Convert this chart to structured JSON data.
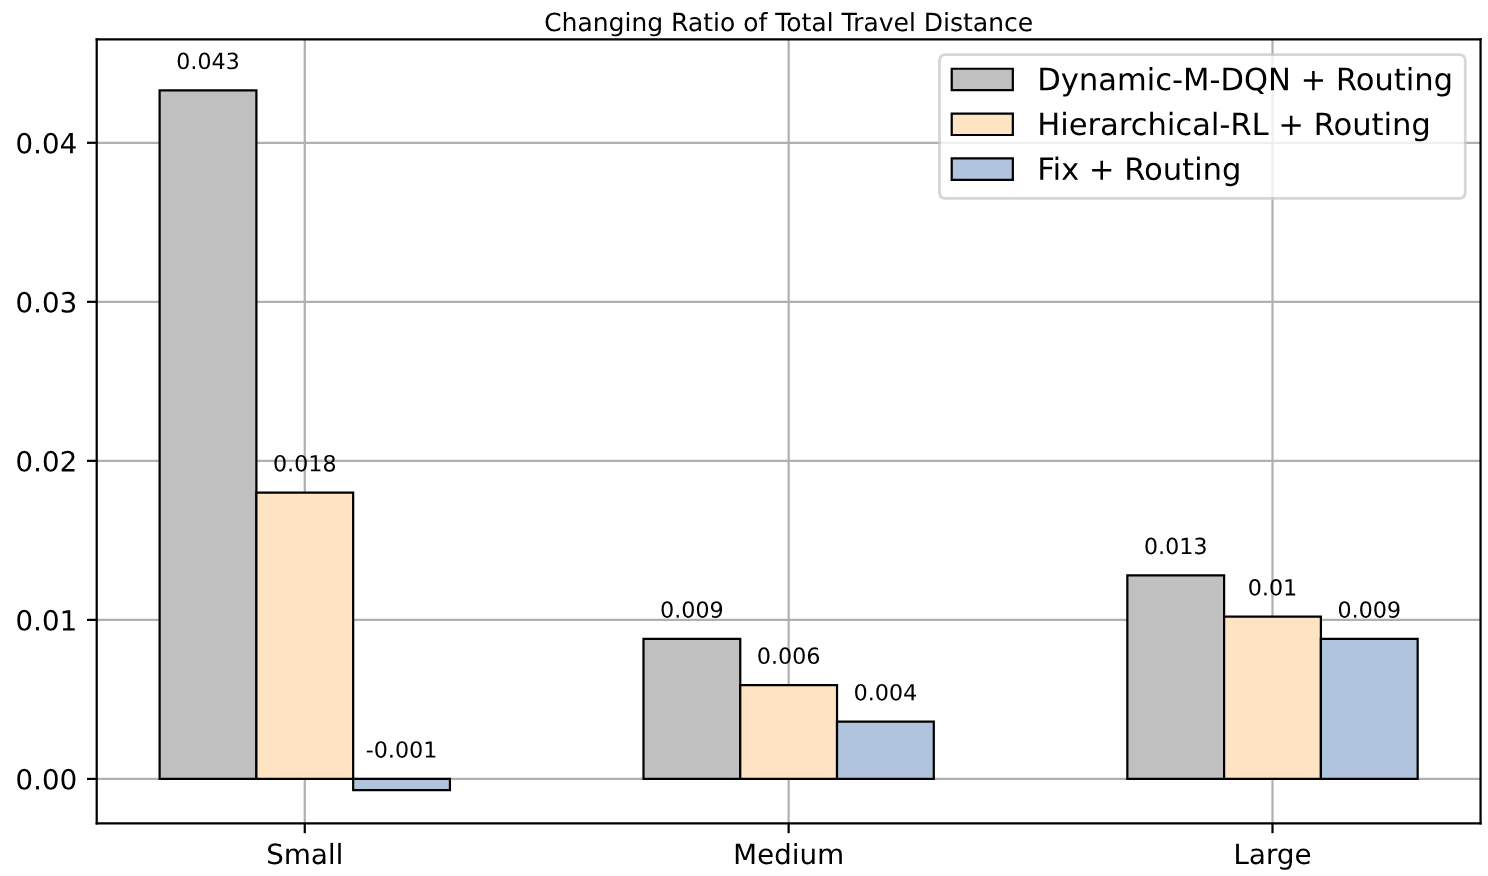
{
  "chart_data": {
    "type": "bar",
    "title": "Changing Ratio of Total Travel Distance",
    "categories": [
      "Small",
      "Medium",
      "Large"
    ],
    "series": [
      {
        "name": "Dynamic-M-DQN + Routing",
        "color": "#c0c0c0",
        "values": [
          0.0433,
          0.0088,
          0.0128
        ],
        "value_labels": [
          "0.043",
          "0.009",
          "0.013"
        ]
      },
      {
        "name": "Hierarchical-RL + Routing",
        "color": "#ffe4c4",
        "values": [
          0.018,
          0.0059,
          0.0102
        ],
        "value_labels": [
          "0.018",
          "0.006",
          "0.01"
        ]
      },
      {
        "name": "Fix + Routing",
        "color": "#b0c4de",
        "values": [
          -0.0007,
          0.0036,
          0.0088
        ],
        "value_labels": [
          "-0.001",
          "0.004",
          "0.009"
        ]
      }
    ],
    "ylim": [
      -0.0028,
      0.0465
    ],
    "yticks": [
      {
        "value": 0,
        "label": "0.00"
      },
      {
        "value": 0.01,
        "label": "0.01"
      },
      {
        "value": 0.02,
        "label": "0.02"
      },
      {
        "value": 0.03,
        "label": "0.03"
      },
      {
        "value": 0.04,
        "label": "0.04"
      }
    ],
    "grid": true,
    "legend": "top right"
  }
}
